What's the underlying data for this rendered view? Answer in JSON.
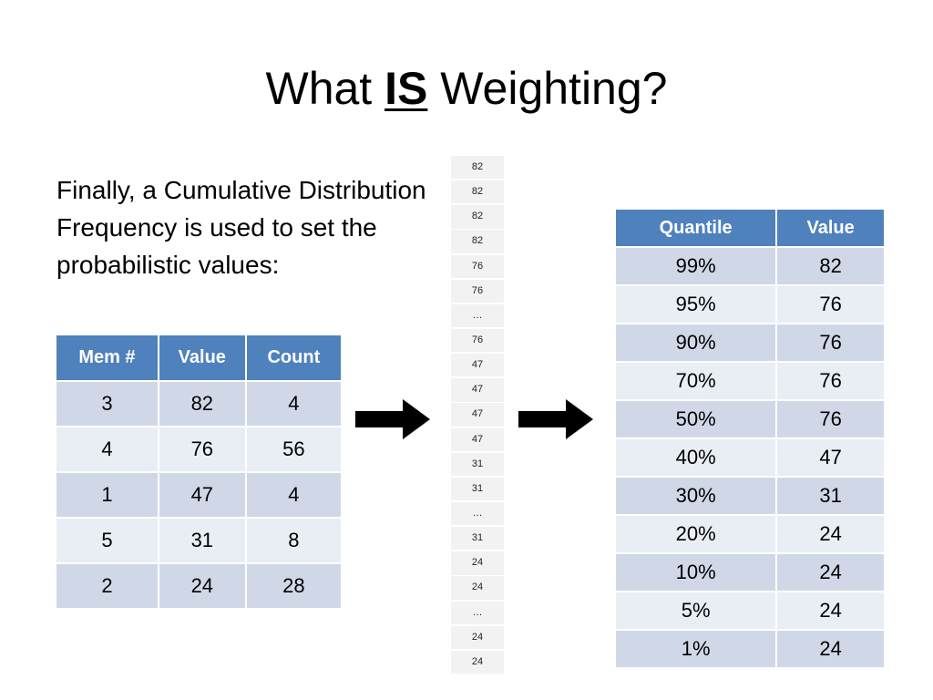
{
  "slide": {
    "title_before": "What ",
    "title_emphasis": "IS",
    "title_after": " Weighting?",
    "body_text": "Finally, a Cumulative Distribution Frequency is used to set the probabilistic values:"
  },
  "members_table": {
    "headers": [
      "Mem #",
      "Value",
      "Count"
    ],
    "rows": [
      [
        "3",
        "82",
        "4"
      ],
      [
        "4",
        "76",
        "56"
      ],
      [
        "1",
        "47",
        "4"
      ],
      [
        "5",
        "31",
        "8"
      ],
      [
        "2",
        "24",
        "28"
      ]
    ]
  },
  "value_column": [
    "82",
    "82",
    "82",
    "82",
    "76",
    "76",
    "…",
    "76",
    "47",
    "47",
    "47",
    "47",
    "31",
    "31",
    "…",
    "31",
    "24",
    "24",
    "…",
    "24",
    "24"
  ],
  "quantile_table": {
    "headers": [
      "Quantile",
      "Value"
    ],
    "rows": [
      [
        "99%",
        "82"
      ],
      [
        "95%",
        "76"
      ],
      [
        "90%",
        "76"
      ],
      [
        "70%",
        "76"
      ],
      [
        "50%",
        "76"
      ],
      [
        "40%",
        "47"
      ],
      [
        "30%",
        "31"
      ],
      [
        "20%",
        "24"
      ],
      [
        "10%",
        "24"
      ],
      [
        "5%",
        "24"
      ],
      [
        "1%",
        "24"
      ]
    ]
  },
  "colors": {
    "header_blue": "#4f81bd",
    "row_dark": "#d0d8e8",
    "row_light": "#e9edf4"
  },
  "icons": [
    "right-arrow-icon",
    "right-arrow-icon"
  ]
}
